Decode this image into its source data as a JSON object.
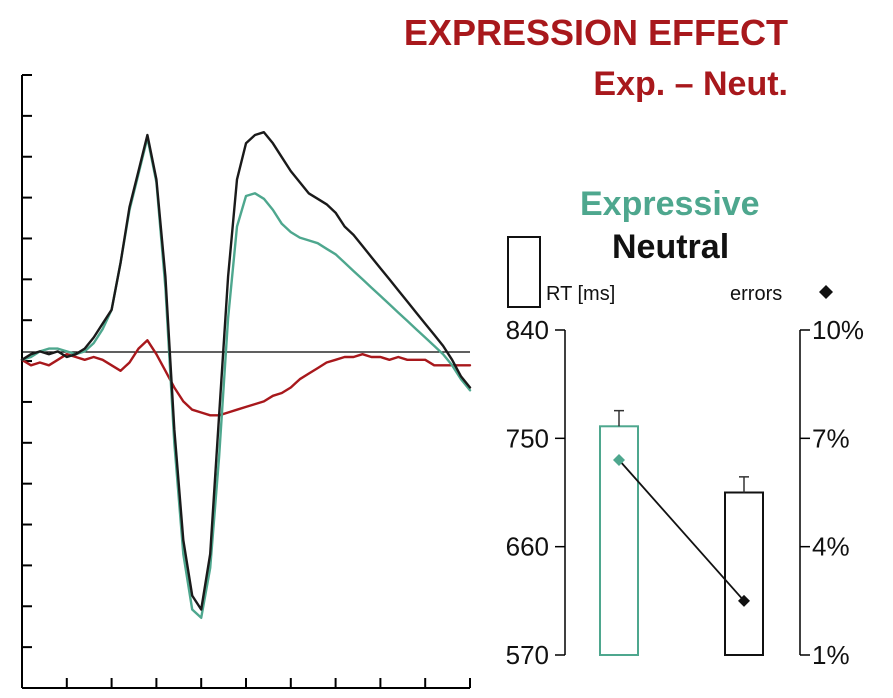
{
  "chart_data": [
    {
      "type": "line",
      "title": "EXPRESSION EFFECT",
      "subtitle": "Exp. – Neut.",
      "xlabel": "",
      "ylabel": "",
      "x_ticks": 10,
      "y_ticks": 16,
      "x": [
        0,
        2,
        4,
        6,
        8,
        10,
        12,
        14,
        16,
        18,
        20,
        22,
        24,
        26,
        28,
        30,
        32,
        34,
        36,
        38,
        40,
        42,
        44,
        46,
        48,
        50,
        52,
        54,
        56,
        58,
        60,
        62,
        64,
        66,
        68,
        70,
        72,
        74,
        76,
        78,
        80,
        82,
        84,
        86,
        88,
        90,
        92,
        94,
        96,
        98,
        100
      ],
      "series": [
        {
          "name": "Neutral",
          "color": "#1a1a1a",
          "values": [
            0.0,
            0.2,
            0.3,
            0.2,
            0.3,
            0.1,
            0.2,
            0.4,
            0.8,
            1.3,
            1.8,
            3.5,
            5.5,
            6.8,
            8.1,
            6.5,
            3.0,
            -2.5,
            -6.5,
            -8.5,
            -9.0,
            -7.0,
            -2.0,
            3.0,
            6.5,
            7.8,
            8.1,
            8.2,
            7.8,
            7.3,
            6.8,
            6.4,
            6.0,
            5.8,
            5.6,
            5.3,
            4.8,
            4.5,
            4.1,
            3.7,
            3.3,
            2.9,
            2.5,
            2.1,
            1.7,
            1.3,
            0.9,
            0.5,
            0.0,
            -0.6,
            -1.0
          ]
        },
        {
          "name": "Expressive",
          "color": "#4ea78e",
          "values": [
            0.0,
            0.1,
            0.3,
            0.4,
            0.4,
            0.3,
            0.2,
            0.3,
            0.6,
            1.1,
            1.8,
            3.5,
            5.4,
            6.7,
            8.0,
            6.4,
            2.6,
            -3.0,
            -7.0,
            -9.0,
            -9.3,
            -7.5,
            -3.5,
            1.5,
            4.8,
            5.9,
            6.0,
            5.8,
            5.4,
            4.9,
            4.6,
            4.4,
            4.3,
            4.2,
            4.0,
            3.8,
            3.5,
            3.2,
            2.9,
            2.6,
            2.3,
            2.0,
            1.7,
            1.4,
            1.1,
            0.8,
            0.5,
            0.2,
            -0.2,
            -0.7,
            -1.1
          ]
        },
        {
          "name": "Exp. – Neut.",
          "color": "#a8181c",
          "values": [
            0.0,
            -0.2,
            -0.1,
            -0.2,
            0.0,
            0.2,
            0.1,
            0.0,
            0.1,
            0.0,
            -0.2,
            -0.4,
            -0.1,
            0.4,
            0.7,
            0.2,
            -0.4,
            -1.0,
            -1.5,
            -1.8,
            -1.9,
            -2.0,
            -2.0,
            -1.9,
            -1.8,
            -1.7,
            -1.6,
            -1.5,
            -1.3,
            -1.2,
            -1.0,
            -0.7,
            -0.5,
            -0.3,
            -0.1,
            0.0,
            0.1,
            0.1,
            0.2,
            0.1,
            0.1,
            0.0,
            0.1,
            0.0,
            0.0,
            0.0,
            -0.2,
            -0.2,
            -0.2,
            -0.2,
            -0.2
          ]
        }
      ],
      "xlim": [
        0,
        100
      ],
      "ylim": [
        -11,
        9
      ]
    },
    {
      "type": "bar",
      "legend_top": "Expressive",
      "legend_bottom": "Neutral",
      "legend_rt": "RT [ms]",
      "legend_errors": "errors",
      "categories": [
        "Expressive",
        "Neutral"
      ],
      "colors": [
        "#4ea78e",
        "#111111"
      ],
      "rt_values": [
        760,
        705
      ],
      "rt_errors": [
        13,
        13
      ],
      "error_rates": [
        6.4,
        2.5
      ],
      "y_left_ticks": [
        "840",
        "750",
        "660",
        "570"
      ],
      "y_right_ticks": [
        "10%",
        "7%",
        "4%",
        "1%"
      ],
      "ylim_left": [
        570,
        840
      ],
      "ylim_right": [
        1,
        10
      ]
    }
  ]
}
